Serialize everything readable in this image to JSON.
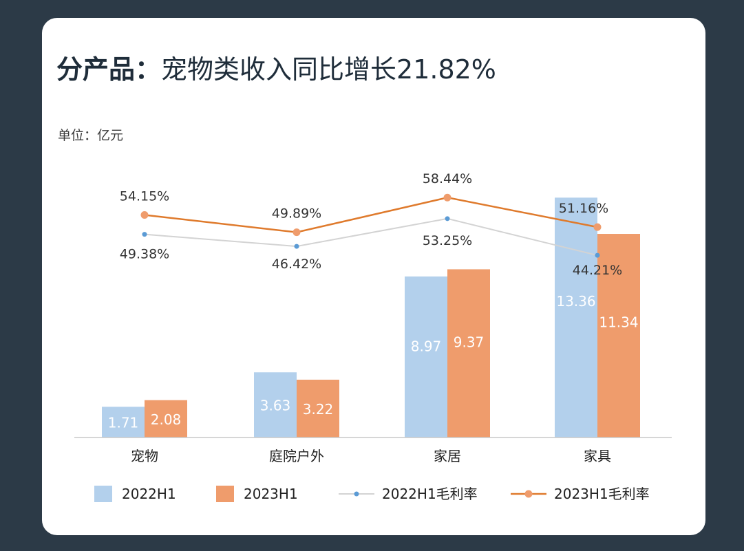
{
  "title": {
    "bold": "分产品：",
    "rest": "宠物类收入同比增长21.82%"
  },
  "unit_label": "单位：亿元",
  "colors": {
    "background": "#2c3a47",
    "bar_2022": "#b3d0ec",
    "bar_2023": "#ef9c6c",
    "line_2022": "#d3d3d3",
    "marker_2022": "#5b9bd5",
    "line_2023": "#df7a2c",
    "marker_2023": "#ef9c6c"
  },
  "chart_data": {
    "type": "bar",
    "categories": [
      "宠物",
      "庭院户外",
      "家居",
      "家具"
    ],
    "series": [
      {
        "name": "2022H1",
        "kind": "bar",
        "values": [
          1.71,
          3.63,
          8.97,
          13.36
        ],
        "labels": [
          "1.71",
          "3.63",
          "8.97",
          "13.36"
        ]
      },
      {
        "name": "2023H1",
        "kind": "bar",
        "values": [
          2.08,
          3.22,
          9.37,
          11.34
        ],
        "labels": [
          "2.08",
          "3.22",
          "9.37",
          "11.34"
        ]
      },
      {
        "name": "2022H1毛利率",
        "kind": "line",
        "values": [
          49.38,
          46.42,
          53.25,
          44.21
        ],
        "labels": [
          "49.38%",
          "46.42%",
          "53.25%",
          "44.21%"
        ]
      },
      {
        "name": "2023H1毛利率",
        "kind": "line",
        "values": [
          54.15,
          49.89,
          58.44,
          51.16
        ],
        "labels": [
          "54.15%",
          "49.89%",
          "58.44%",
          "51.16%"
        ]
      }
    ],
    "grid": false,
    "legend": "bottom"
  }
}
